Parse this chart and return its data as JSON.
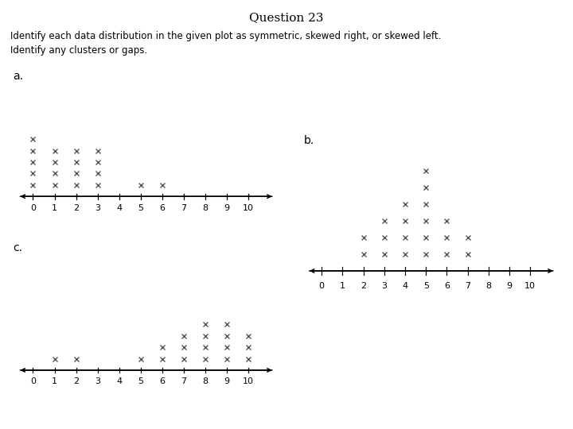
{
  "title": "Question 23",
  "subtitle1": "Identify each data distribution in the given plot as symmetric, skewed right, or skewed left.",
  "subtitle2": "Identify any clusters or gaps.",
  "plot_a_label": "a.",
  "plot_b_label": "b.",
  "plot_c_label": "c.",
  "plot_a_counts": {
    "0": 5,
    "1": 4,
    "2": 4,
    "3": 4,
    "5": 1,
    "6": 1
  },
  "plot_b_counts": {
    "2": 2,
    "3": 3,
    "4": 4,
    "5": 6,
    "6": 3,
    "7": 2
  },
  "plot_c_counts": {
    "1": 1,
    "2": 1,
    "5": 1,
    "6": 2,
    "7": 3,
    "8": 4,
    "9": 4,
    "10": 3
  },
  "xticks": [
    0,
    1,
    2,
    3,
    4,
    5,
    6,
    7,
    8,
    9,
    10
  ],
  "xmin": -1,
  "xmax": 11.5,
  "marker": "x",
  "marker_size": 4.5,
  "marker_color": "#555555",
  "bg_color": "#ffffff",
  "title_fontsize": 11,
  "subtitle_fontsize": 8.5,
  "label_fontsize": 10,
  "tick_fontsize": 8
}
